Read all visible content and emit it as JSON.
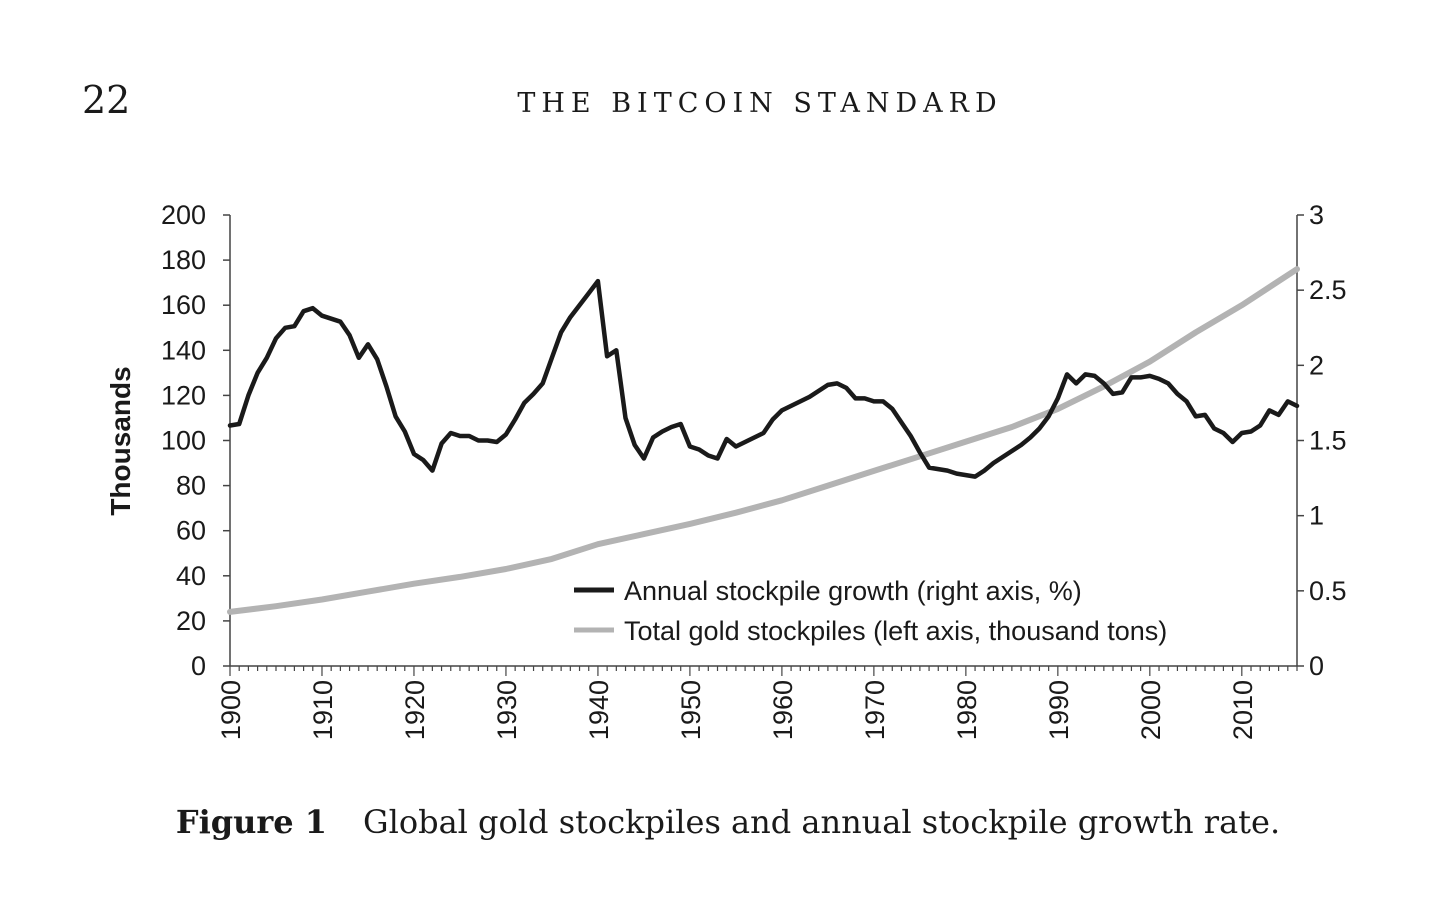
{
  "header": {
    "page_number": "22",
    "running_title": "THE BITCOIN STANDARD"
  },
  "caption": {
    "label": "Figure 1",
    "text": "Global gold stockpiles and annual stockpile growth rate."
  },
  "colors": {
    "growth_line": "#1a1a1a",
    "stockpile_line": "#b3b3b3",
    "axis": "#444444"
  },
  "chart_data": {
    "type": "line",
    "title": "",
    "xlabel": "",
    "ylabel_left": "Thousands",
    "ylabel_right": "",
    "xlim": [
      1900,
      2016
    ],
    "ylim_left": [
      0,
      200
    ],
    "ylim_right": [
      0,
      3
    ],
    "x_ticks": [
      1900,
      1910,
      1920,
      1930,
      1940,
      1950,
      1960,
      1970,
      1980,
      1990,
      2000,
      2010
    ],
    "y_ticks_left": [
      0,
      20,
      40,
      60,
      80,
      100,
      120,
      140,
      160,
      180,
      200
    ],
    "y_ticks_right": [
      0,
      0.5,
      1,
      1.5,
      2,
      2.5,
      3
    ],
    "grid": false,
    "legend_position": "lower-right inside plot",
    "series": [
      {
        "name": "Annual stockpile growth (right axis, %)",
        "axis": "right",
        "x": [
          1900,
          1901,
          1902,
          1903,
          1904,
          1905,
          1906,
          1907,
          1908,
          1909,
          1910,
          1911,
          1912,
          1913,
          1914,
          1915,
          1916,
          1917,
          1918,
          1919,
          1920,
          1921,
          1922,
          1923,
          1924,
          1925,
          1926,
          1927,
          1928,
          1929,
          1930,
          1931,
          1932,
          1933,
          1934,
          1935,
          1936,
          1937,
          1938,
          1939,
          1940,
          1941,
          1942,
          1943,
          1944,
          1945,
          1946,
          1947,
          1948,
          1949,
          1950,
          1951,
          1952,
          1953,
          1954,
          1955,
          1956,
          1957,
          1958,
          1959,
          1960,
          1961,
          1962,
          1963,
          1964,
          1965,
          1966,
          1967,
          1968,
          1969,
          1970,
          1971,
          1972,
          1973,
          1974,
          1975,
          1976,
          1977,
          1978,
          1979,
          1980,
          1981,
          1982,
          1983,
          1984,
          1985,
          1986,
          1987,
          1988,
          1989,
          1990,
          1991,
          1992,
          1993,
          1994,
          1995,
          1996,
          1997,
          1998,
          1999,
          2000,
          2001,
          2002,
          2003,
          2004,
          2005,
          2006,
          2007,
          2008,
          2009,
          2010,
          2011,
          2012,
          2013,
          2014,
          2015,
          2016
        ],
        "values": [
          1.6,
          1.61,
          1.8,
          1.95,
          2.05,
          2.18,
          2.25,
          2.26,
          2.36,
          2.38,
          2.33,
          2.31,
          2.29,
          2.2,
          2.05,
          2.14,
          2.04,
          1.86,
          1.66,
          1.56,
          1.41,
          1.37,
          1.3,
          1.48,
          1.55,
          1.53,
          1.53,
          1.5,
          1.5,
          1.49,
          1.54,
          1.64,
          1.75,
          1.81,
          1.88,
          2.05,
          2.22,
          2.32,
          2.4,
          2.48,
          2.56,
          2.06,
          2.1,
          1.65,
          1.47,
          1.38,
          1.52,
          1.56,
          1.59,
          1.61,
          1.46,
          1.44,
          1.4,
          1.38,
          1.51,
          1.46,
          1.49,
          1.52,
          1.55,
          1.64,
          1.7,
          1.73,
          1.76,
          1.79,
          1.83,
          1.87,
          1.88,
          1.85,
          1.78,
          1.78,
          1.76,
          1.76,
          1.71,
          1.62,
          1.53,
          1.42,
          1.32,
          1.31,
          1.3,
          1.28,
          1.27,
          1.26,
          1.3,
          1.35,
          1.39,
          1.43,
          1.47,
          1.52,
          1.58,
          1.66,
          1.78,
          1.94,
          1.88,
          1.94,
          1.93,
          1.88,
          1.81,
          1.82,
          1.92,
          1.92,
          1.93,
          1.91,
          1.88,
          1.81,
          1.76,
          1.66,
          1.67,
          1.58,
          1.55,
          1.49,
          1.55,
          1.56,
          1.6,
          1.7,
          1.67,
          1.76,
          1.73
        ]
      },
      {
        "name": "Total gold stockpiles (left axis, thousand tons)",
        "axis": "left",
        "x": [
          1900,
          1905,
          1910,
          1915,
          1920,
          1925,
          1930,
          1935,
          1940,
          1945,
          1950,
          1955,
          1960,
          1965,
          1970,
          1975,
          1980,
          1985,
          1990,
          1995,
          2000,
          2005,
          2010,
          2016
        ],
        "values": [
          24,
          26.5,
          29.5,
          33,
          36.5,
          39.5,
          43,
          47.5,
          54,
          58.5,
          63,
          68,
          73.5,
          80,
          86.5,
          93,
          99.5,
          106,
          114,
          124,
          135,
          148,
          160,
          176
        ]
      }
    ]
  }
}
